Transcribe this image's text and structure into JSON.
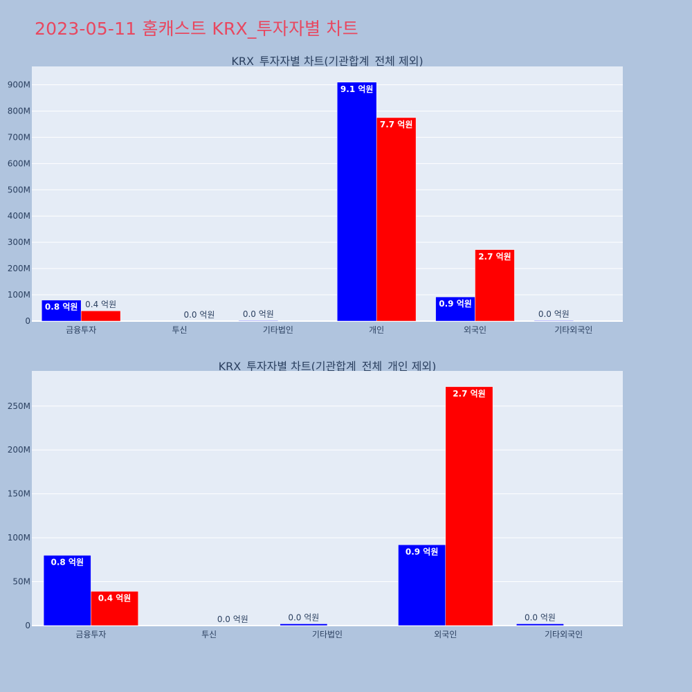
{
  "page": {
    "title": "2023-05-11 홈캐스트 KRX_투자자별 차트"
  },
  "colors": {
    "background": "#b0c4de",
    "plot_bg": "#e5ecf6",
    "grid": "#ffffff",
    "buy": "#0000ff",
    "sell": "#ff0000",
    "title": "#e8475f",
    "text": "#2a3f5f"
  },
  "chart_data": [
    {
      "type": "bar",
      "title": "KRX_투자자별 차트(기관합계_전체 제외)",
      "categories": [
        "금융투자",
        "투신",
        "기타법인",
        "개인",
        "외국인",
        "기타외국인"
      ],
      "ylim": [
        0,
        970000000
      ],
      "yticks": [
        0,
        100000000,
        200000000,
        300000000,
        400000000,
        500000000,
        600000000,
        700000000,
        800000000,
        900000000
      ],
      "ytick_labels": [
        "0",
        "100M",
        "200M",
        "300M",
        "400M",
        "500M",
        "600M",
        "700M",
        "800M",
        "900M"
      ],
      "grid": true,
      "series": [
        {
          "color": "#0000ff",
          "values": [
            80000000,
            0,
            2000000,
            910000000,
            92000000,
            2000000
          ],
          "labels": [
            "0.8 억원",
            "",
            "0.0 억원",
            "9.1 억원",
            "0.9 억원",
            "0.0 억원"
          ]
        },
        {
          "color": "#ff0000",
          "values": [
            39000000,
            0,
            0,
            775000000,
            272000000,
            0
          ],
          "labels": [
            "0.4 억원",
            "0.0 억원",
            "",
            "7.7 억원",
            "2.7 억원",
            ""
          ]
        }
      ]
    },
    {
      "type": "bar",
      "title": "KRX_투자자별 차트(기관합계_전체_개인 제외)",
      "categories": [
        "금융투자",
        "투신",
        "기타법인",
        "외국인",
        "기타외국인"
      ],
      "ylim": [
        0,
        290000000
      ],
      "yticks": [
        0,
        50000000,
        100000000,
        150000000,
        200000000,
        250000000
      ],
      "ytick_labels": [
        "0",
        "50M",
        "100M",
        "150M",
        "200M",
        "250M"
      ],
      "grid": true,
      "series": [
        {
          "color": "#0000ff",
          "values": [
            80000000,
            0,
            2000000,
            92000000,
            2000000
          ],
          "labels": [
            "0.8 억원",
            "",
            "0.0 억원",
            "0.9 억원",
            "0.0 억원"
          ]
        },
        {
          "color": "#ff0000",
          "values": [
            39000000,
            0,
            0,
            272000000,
            0
          ],
          "labels": [
            "0.4 억원",
            "0.0 억원",
            "",
            "2.7 억원",
            ""
          ]
        }
      ]
    }
  ]
}
